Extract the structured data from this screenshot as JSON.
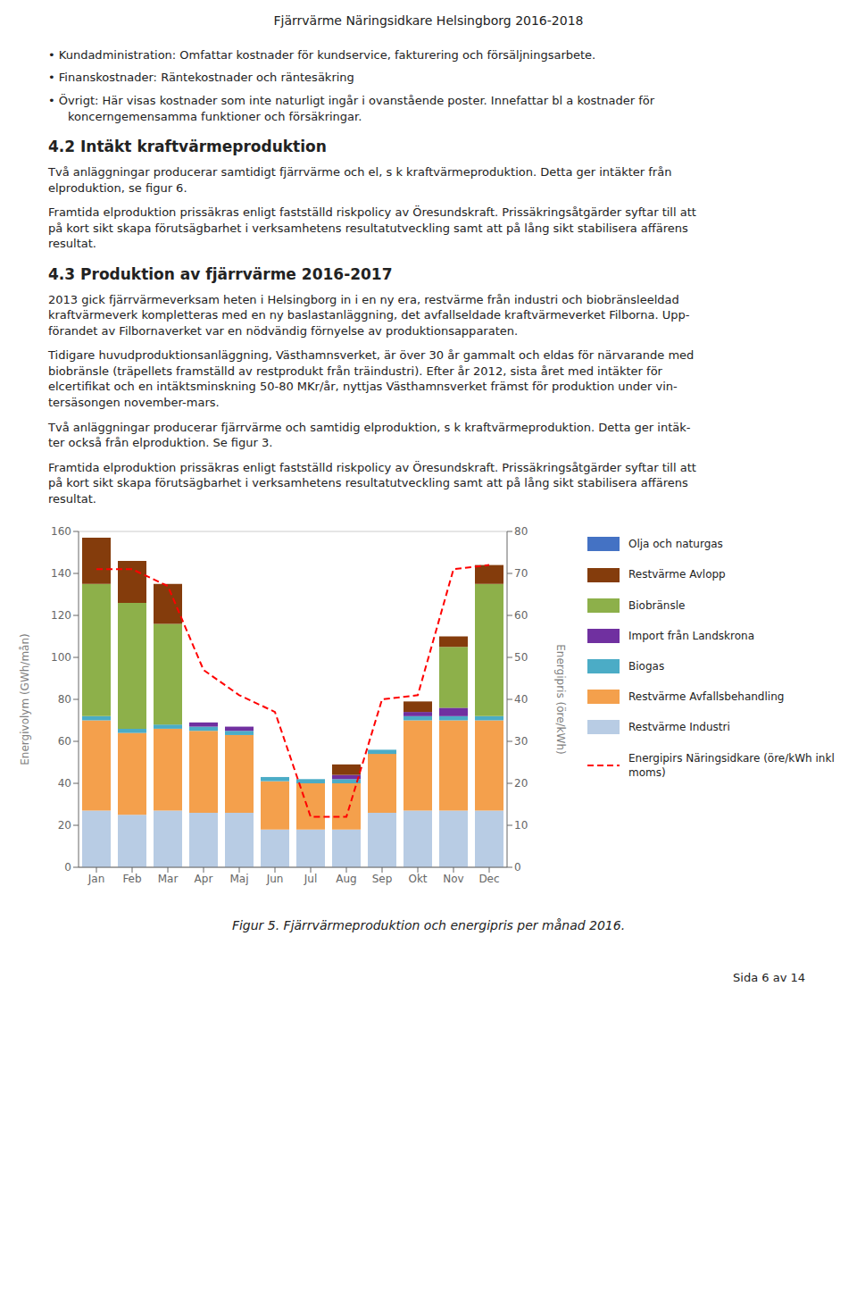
{
  "chart_data": {
    "type": "bar",
    "title": "Fjärrvärme Näringsidkare Helsingborg 2016-2018",
    "categories": [
      "Jan",
      "Feb",
      "Mar",
      "Apr",
      "Maj",
      "Jun",
      "Jul",
      "Aug",
      "Sep",
      "Okt",
      "Nov",
      "Dec"
    ],
    "series": [
      {
        "name": "Restvärme Industri",
        "color": "#B8CCE4",
        "values": [
          27,
          25,
          27,
          26,
          26,
          18,
          18,
          18,
          26,
          27,
          27,
          27
        ]
      },
      {
        "name": "Restvärme Avfallsbehandling",
        "color": "#F4A04C",
        "values": [
          43,
          39,
          39,
          39,
          37,
          23,
          22,
          22,
          28,
          43,
          43,
          43
        ]
      },
      {
        "name": "Biogas",
        "color": "#4BACC6",
        "values": [
          2,
          2,
          2,
          2,
          2,
          2,
          2,
          2,
          2,
          2,
          2,
          2
        ]
      },
      {
        "name": "Import från Landskrona",
        "color": "#7030A0",
        "values": [
          0,
          0,
          0,
          2,
          2,
          0,
          0,
          2,
          0,
          2,
          4,
          0
        ]
      },
      {
        "name": "Biobränsle",
        "color": "#8DB04A",
        "values": [
          63,
          60,
          48,
          0,
          0,
          0,
          0,
          0,
          0,
          0,
          29,
          63
        ]
      },
      {
        "name": "Restvärme Avlopp",
        "color": "#843C0C",
        "values": [
          22,
          20,
          19,
          0,
          0,
          0,
          0,
          5,
          0,
          5,
          5,
          9
        ]
      },
      {
        "name": "Olja och naturgas",
        "color": "#4472C4",
        "values": [
          0,
          0,
          0,
          0,
          0,
          0,
          0,
          0,
          0,
          0,
          0,
          0
        ]
      },
      {
        "name": "Energipirs Näringsidkare (öre/kWh inkl moms)",
        "color": "#FF0000",
        "type": "line",
        "axis": "y2",
        "line_style": "dashed",
        "values": [
          71,
          71,
          67,
          47,
          41,
          37,
          12,
          12,
          40,
          41,
          71,
          72
        ]
      }
    ],
    "stacked": true,
    "ylim": [
      0,
      160
    ],
    "yticks": [
      0,
      20,
      40,
      60,
      80,
      100,
      120,
      140,
      160
    ],
    "y2lim": [
      0,
      80
    ],
    "y2ticks": [
      0,
      10,
      20,
      30,
      40,
      50,
      60,
      70,
      80
    ],
    "ylabel": "Energivolym (GWh/mån)",
    "y2label": "Energipris (öre/kWh)",
    "grid": true,
    "legend": "right",
    "annotations": [
      "• Kundadministration: Omfattar kostnader för kundservice, fakturering och försäljningsarbete.",
      "• Finanskostnader: Räntekostnader och räntesäkring",
      "• Övrigt: Här visas kostnader som inte naturligt ingår i ovanstående poster. Innefattar bl a kostnader för\nkoncerngemensamma funktioner och försäkringar.",
      "4.2 Intäkt kraftvärmeproduktion",
      "Två anläggningar producerar samtidigt fjärrvärme och el, s k kraftvärmeproduktion. Detta ger intäkter från\nelproduktion, se figur 6.",
      "Framtida elproduktion prissäkras enligt fastställd riskpolicy av Öresundskraft. Prissäkringsåtgärder syftar till att\npå kort sikt skapa förutsägbarhet i verksamhetens resultatutveckling samt att på lång sikt stabilisera affärens\nresultat.",
      "4.3 Produktion av fjärrvärme 2016-2017",
      "2013 gick fjärrvärmeverksam heten i Helsingborg in i en ny era, restvärme från industri och biobränsleeldad\nkraftvärmeverk kompletteras med en ny baslastanläggning, det avfallseldade kraftvärmeverket Filborna. Upp-\nförandet av Filbornaverket var en nödvändig förnyelse av produktionsapparaten.",
      "Tidigare huvudproduktionsanläggning, Västhamnsverket, är över 30 år gammalt och eldas för närvarande med\nbiobränsle (träpellets framställd av restprodukt från träindustri).  Efter år 2012, sista året med intäkter för\nelcertifikat och en intäktsminskning 50-80 MKr/år, nyttjas Västhamnsverket främst för produktion under vin-\ntersäsongen november-mars.",
      "Två anläggningar producerar fjärrvärme och samtidig elproduktion, s k kraftvärmeproduktion. Detta ger intäk-\nter också från elproduktion. Se figur 3.",
      "Framtida elproduktion prissäkras enligt fastställd riskpolicy av Öresundskraft. Prissäkringsåtgärder syftar till att\npå kort sikt skapa förutsägbarhet i verksamhetens resultatutveckling samt att på lång sikt stabilisera affärens\nresultat.",
      "Figur 5. Fjärrvärmeproduktion och energipris per månad 2016.",
      "Sida 6 av 14"
    ]
  }
}
